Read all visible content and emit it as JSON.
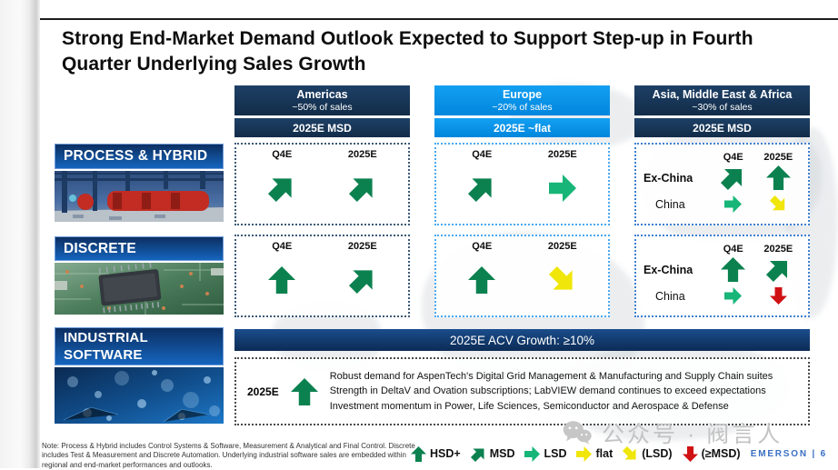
{
  "slide": {
    "title": "Strong End-Market Demand Outlook Expected to Support Step-up in Fourth Quarter Underlying Sales Growth",
    "page_label": "EMERSON | 6"
  },
  "regions": [
    {
      "name": "Americas",
      "share": "~50% of sales",
      "outlook": "2025E MSD"
    },
    {
      "name": "Europe",
      "share": "~20% of sales",
      "outlook": "2025E ~flat"
    },
    {
      "name": "Asia, Middle East & Africa",
      "share": "~30% of sales",
      "outlook": "2025E MSD"
    }
  ],
  "col_headers": {
    "q4e": "Q4E",
    "y2025e": "2025E"
  },
  "asia_sublabels": {
    "ex_china": "Ex-China",
    "china": "China"
  },
  "rows": [
    {
      "id": "process-hybrid",
      "label": "PROCESS & HYBRID",
      "cells": {
        "americas": {
          "q4e": "MSD",
          "y2025e": "MSD"
        },
        "europe": {
          "q4e": "MSD",
          "y2025e": "LSD"
        },
        "asia": {
          "ex_china": {
            "q4e": "MSD",
            "y2025e": "HSD+"
          },
          "china": {
            "q4e": "LSD",
            "y2025e": "(LSD)"
          }
        }
      }
    },
    {
      "id": "discrete",
      "label": "DISCRETE",
      "cells": {
        "americas": {
          "q4e": "HSD+",
          "y2025e": "MSD"
        },
        "europe": {
          "q4e": "HSD+",
          "y2025e": "(LSD)"
        },
        "asia": {
          "ex_china": {
            "q4e": "HSD+",
            "y2025e": "MSD"
          },
          "china": {
            "q4e": "LSD",
            "y2025e": "(≥MSD)"
          }
        }
      }
    }
  ],
  "industrial_software": {
    "label_line1": "INDUSTRIAL",
    "label_line2": "SOFTWARE",
    "acv_banner": "2025E ACV Growth: ≥10%",
    "year_label": "2025E",
    "arrow": "HSD+",
    "bullets": [
      "Robust demand for AspenTech's Digital Grid Management & Manufacturing and Supply Chain suites",
      "Strength in DeltaV and Ovation subscriptions; LabVIEW demand continues to exceed expectations",
      "Investment momentum in Power, Life Sciences, Semiconductor and Aerospace & Defense"
    ]
  },
  "note": "Note: Process & Hybrid includes Control Systems & Software, Measurement & Analytical and Final Control. Discrete includes Test & Measurement and Discrete Automation. Underlying industrial software sales are embedded within regional and end-market performances and outlooks.",
  "legend": {
    "items": [
      {
        "token": "HSD+",
        "label": "HSD+"
      },
      {
        "token": "MSD",
        "label": "MSD"
      },
      {
        "token": "LSD",
        "label": "LSD"
      },
      {
        "token": "flat",
        "label": "flat"
      },
      {
        "token": "(LSD)",
        "label": "(LSD)"
      },
      {
        "token": "(≥MSD)",
        "label": "(≥MSD)"
      }
    ]
  },
  "arrow_styles": {
    "HSD+": {
      "dir": "up",
      "color": "#0c8150"
    },
    "MSD": {
      "dir": "up-right",
      "color": "#0c8150"
    },
    "LSD": {
      "dir": "right",
      "color": "#17b577"
    },
    "flat": {
      "dir": "right",
      "color": "#f0e60a"
    },
    "(LSD)": {
      "dir": "down-right",
      "color": "#f0e60a"
    },
    "(≥MSD)": {
      "dir": "down",
      "color": "#d01114"
    }
  },
  "colors": {
    "navy": "#14304e",
    "bright_blue": "#0090e8",
    "dark_green": "#0c8150",
    "light_green": "#17b577",
    "yellow": "#f0e60a",
    "red": "#d01114",
    "emerson_blue": "#3a6fc4"
  },
  "watermark": {
    "text": "公众号 · 阀言人"
  }
}
